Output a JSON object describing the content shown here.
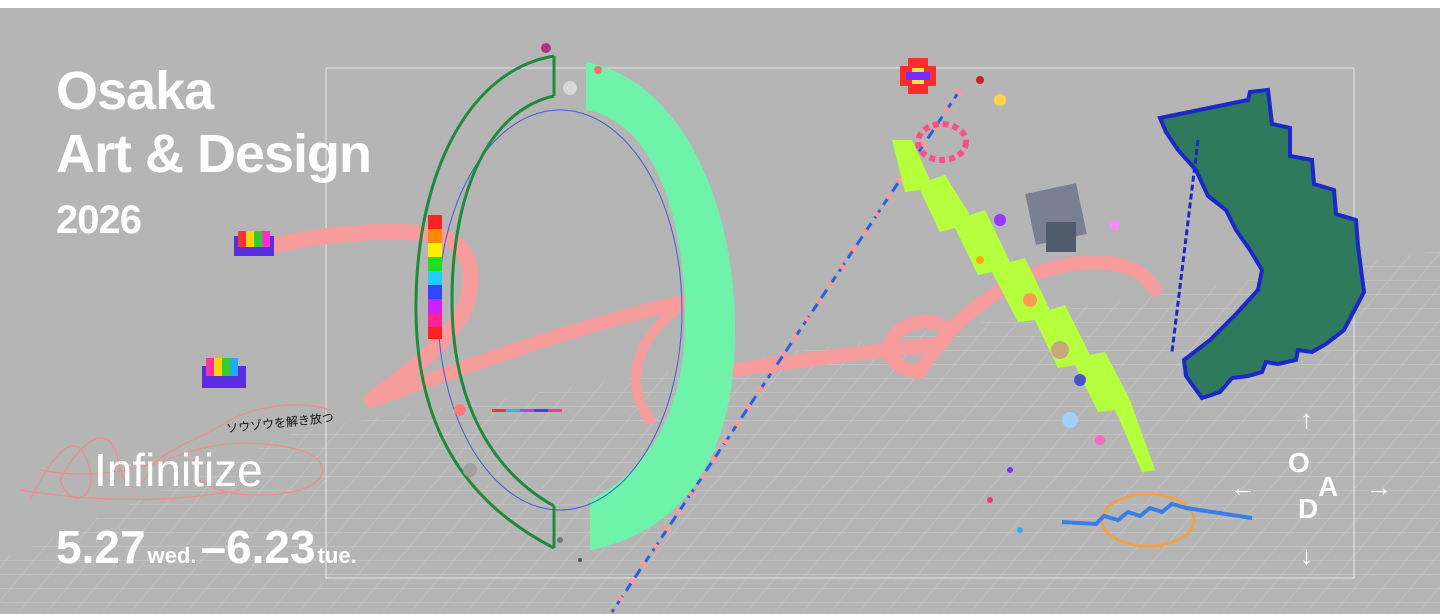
{
  "banner": {
    "title_line1": "Osaka",
    "title_line2": "Art & Design",
    "year": "2026",
    "tagline": "ソウゾウを解き放つ",
    "subtitle": "Infinitize",
    "dates": {
      "start": "5.27",
      "start_day": "wed.",
      "separator": "–",
      "end": "6.23",
      "end_day": "tue."
    }
  },
  "logo": {
    "letters": [
      "O",
      "A",
      "D"
    ],
    "arrows": [
      "↑",
      "←",
      "→",
      "↓"
    ]
  },
  "colors": {
    "background": "#b5b5b5",
    "text": "#ffffff",
    "pink": "#f79c9c",
    "mint": "#6cf5a9",
    "green_outline": "#1f8a3a",
    "lime": "#b6ff3d",
    "dark_green": "#2f7a5d",
    "blue": "#1b28c8"
  }
}
